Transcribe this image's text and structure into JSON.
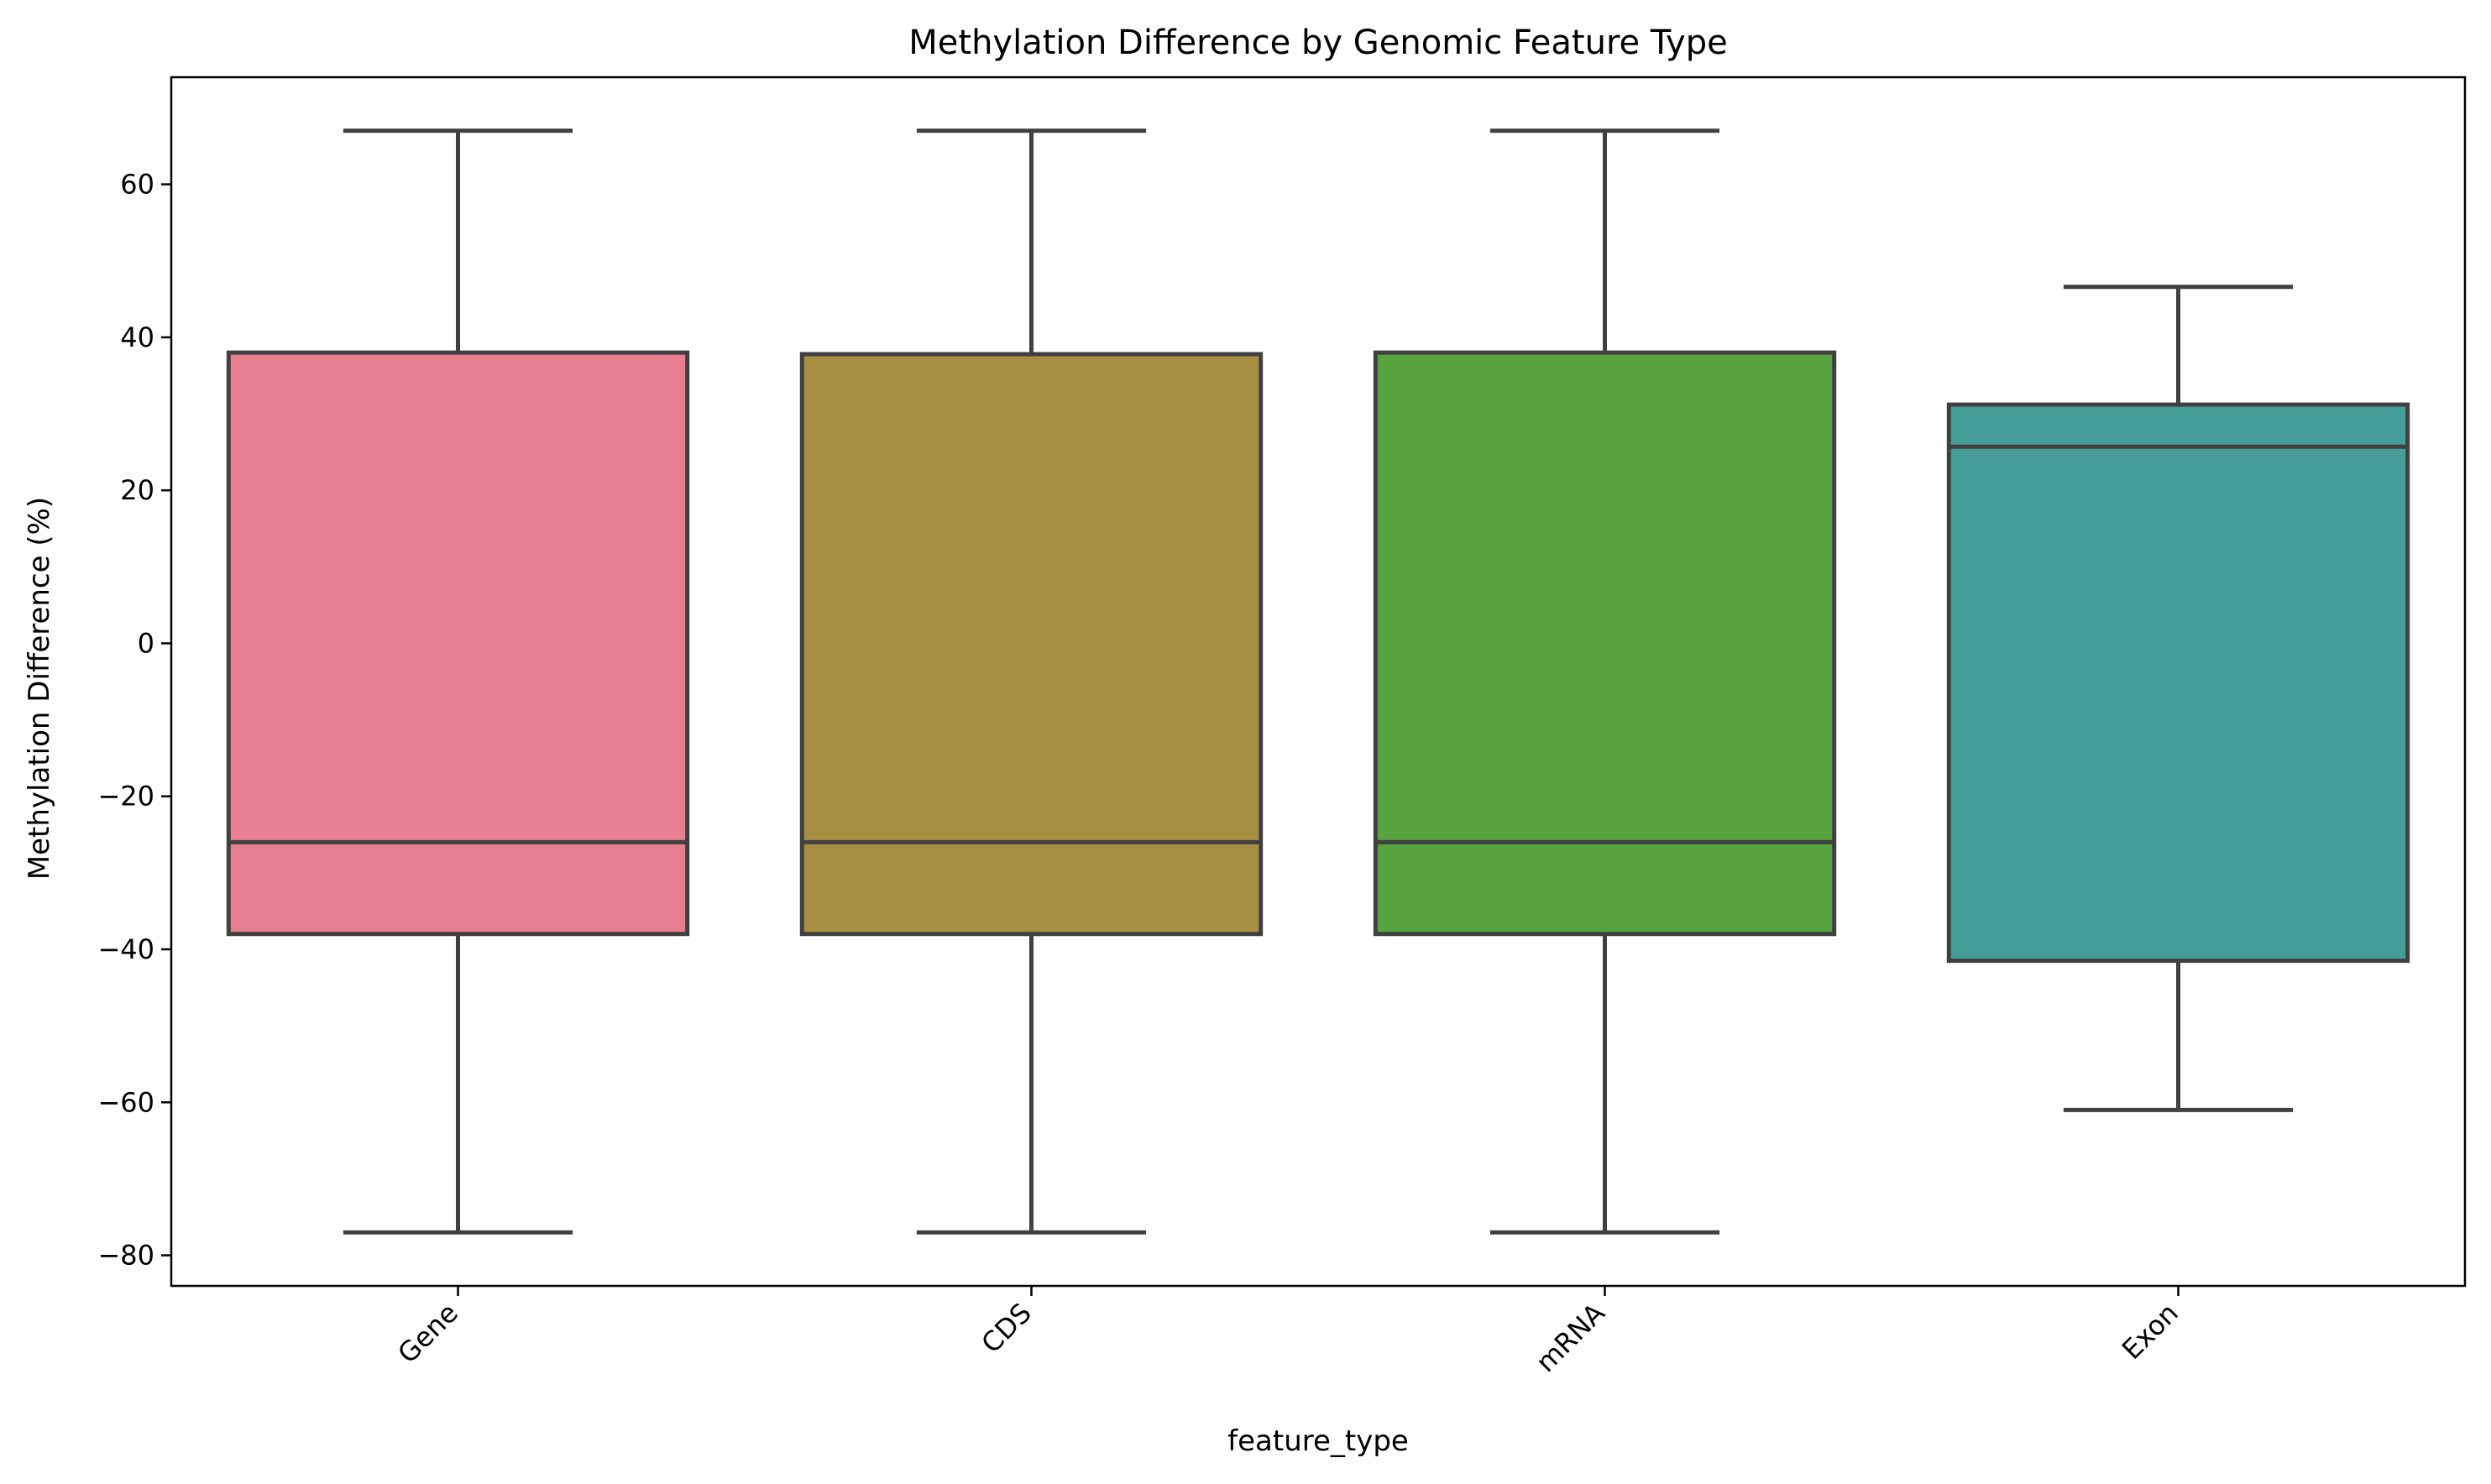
{
  "chart_data": {
    "type": "box",
    "title": "Methylation Difference by Genomic Feature Type",
    "xlabel": "feature_type",
    "ylabel": "Methylation Difference (%)",
    "ylim": [
      -84,
      74
    ],
    "yticks": [
      -80,
      -60,
      -40,
      -20,
      0,
      20,
      40,
      60
    ],
    "categories": [
      "Gene",
      "CDS",
      "mRNA",
      "Exon"
    ],
    "boxes": [
      {
        "category": "Gene",
        "min": -77,
        "q1": -38,
        "median": -26,
        "q3": 38,
        "max": 67,
        "color": "#e77f91"
      },
      {
        "category": "CDS",
        "min": -77,
        "q1": -38,
        "median": -26,
        "q3": 37.8,
        "max": 67,
        "color": "#a88e41"
      },
      {
        "category": "mRNA",
        "min": -77,
        "q1": -38,
        "median": -26,
        "q3": 38,
        "max": 67,
        "color": "#57a33f"
      },
      {
        "category": "Exon",
        "min": -61,
        "q1": -41.5,
        "median": 25.7,
        "q3": 31.2,
        "max": 46.6,
        "color": "#459d97"
      }
    ],
    "grid": false,
    "line_color": "#404040"
  }
}
